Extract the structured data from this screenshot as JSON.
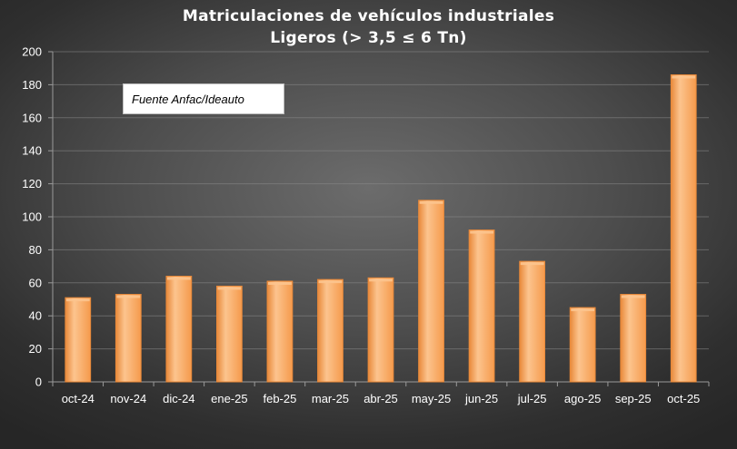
{
  "chart": {
    "title_line_1": "Matriculaciones de vehículos industriales",
    "title_line_2": "Ligeros (> 3,5 ≤ 6 Tn)",
    "source_note": "Fuente Anfac/Ideauto"
  },
  "chart_data": {
    "type": "bar",
    "title": "Matriculaciones de vehículos industriales Ligeros (> 3,5 ≤ 6 Tn)",
    "xlabel": "",
    "ylabel": "",
    "categories": [
      "oct-24",
      "nov-24",
      "dic-24",
      "ene-25",
      "feb-25",
      "mar-25",
      "abr-25",
      "may-25",
      "jun-25",
      "jul-25",
      "ago-25",
      "sep-25",
      "oct-25"
    ],
    "values": [
      51,
      53,
      64,
      58,
      61,
      62,
      63,
      110,
      92,
      73,
      45,
      53,
      186
    ],
    "ylim": [
      0,
      200
    ],
    "yticks": [
      0,
      20,
      40,
      60,
      80,
      100,
      120,
      140,
      160,
      180,
      200
    ],
    "grid": true,
    "legend": "none",
    "bar_color": "#f7a35c",
    "bar_highlight_color": "#fcc48e",
    "bar_edge_color": "#e8893a"
  }
}
